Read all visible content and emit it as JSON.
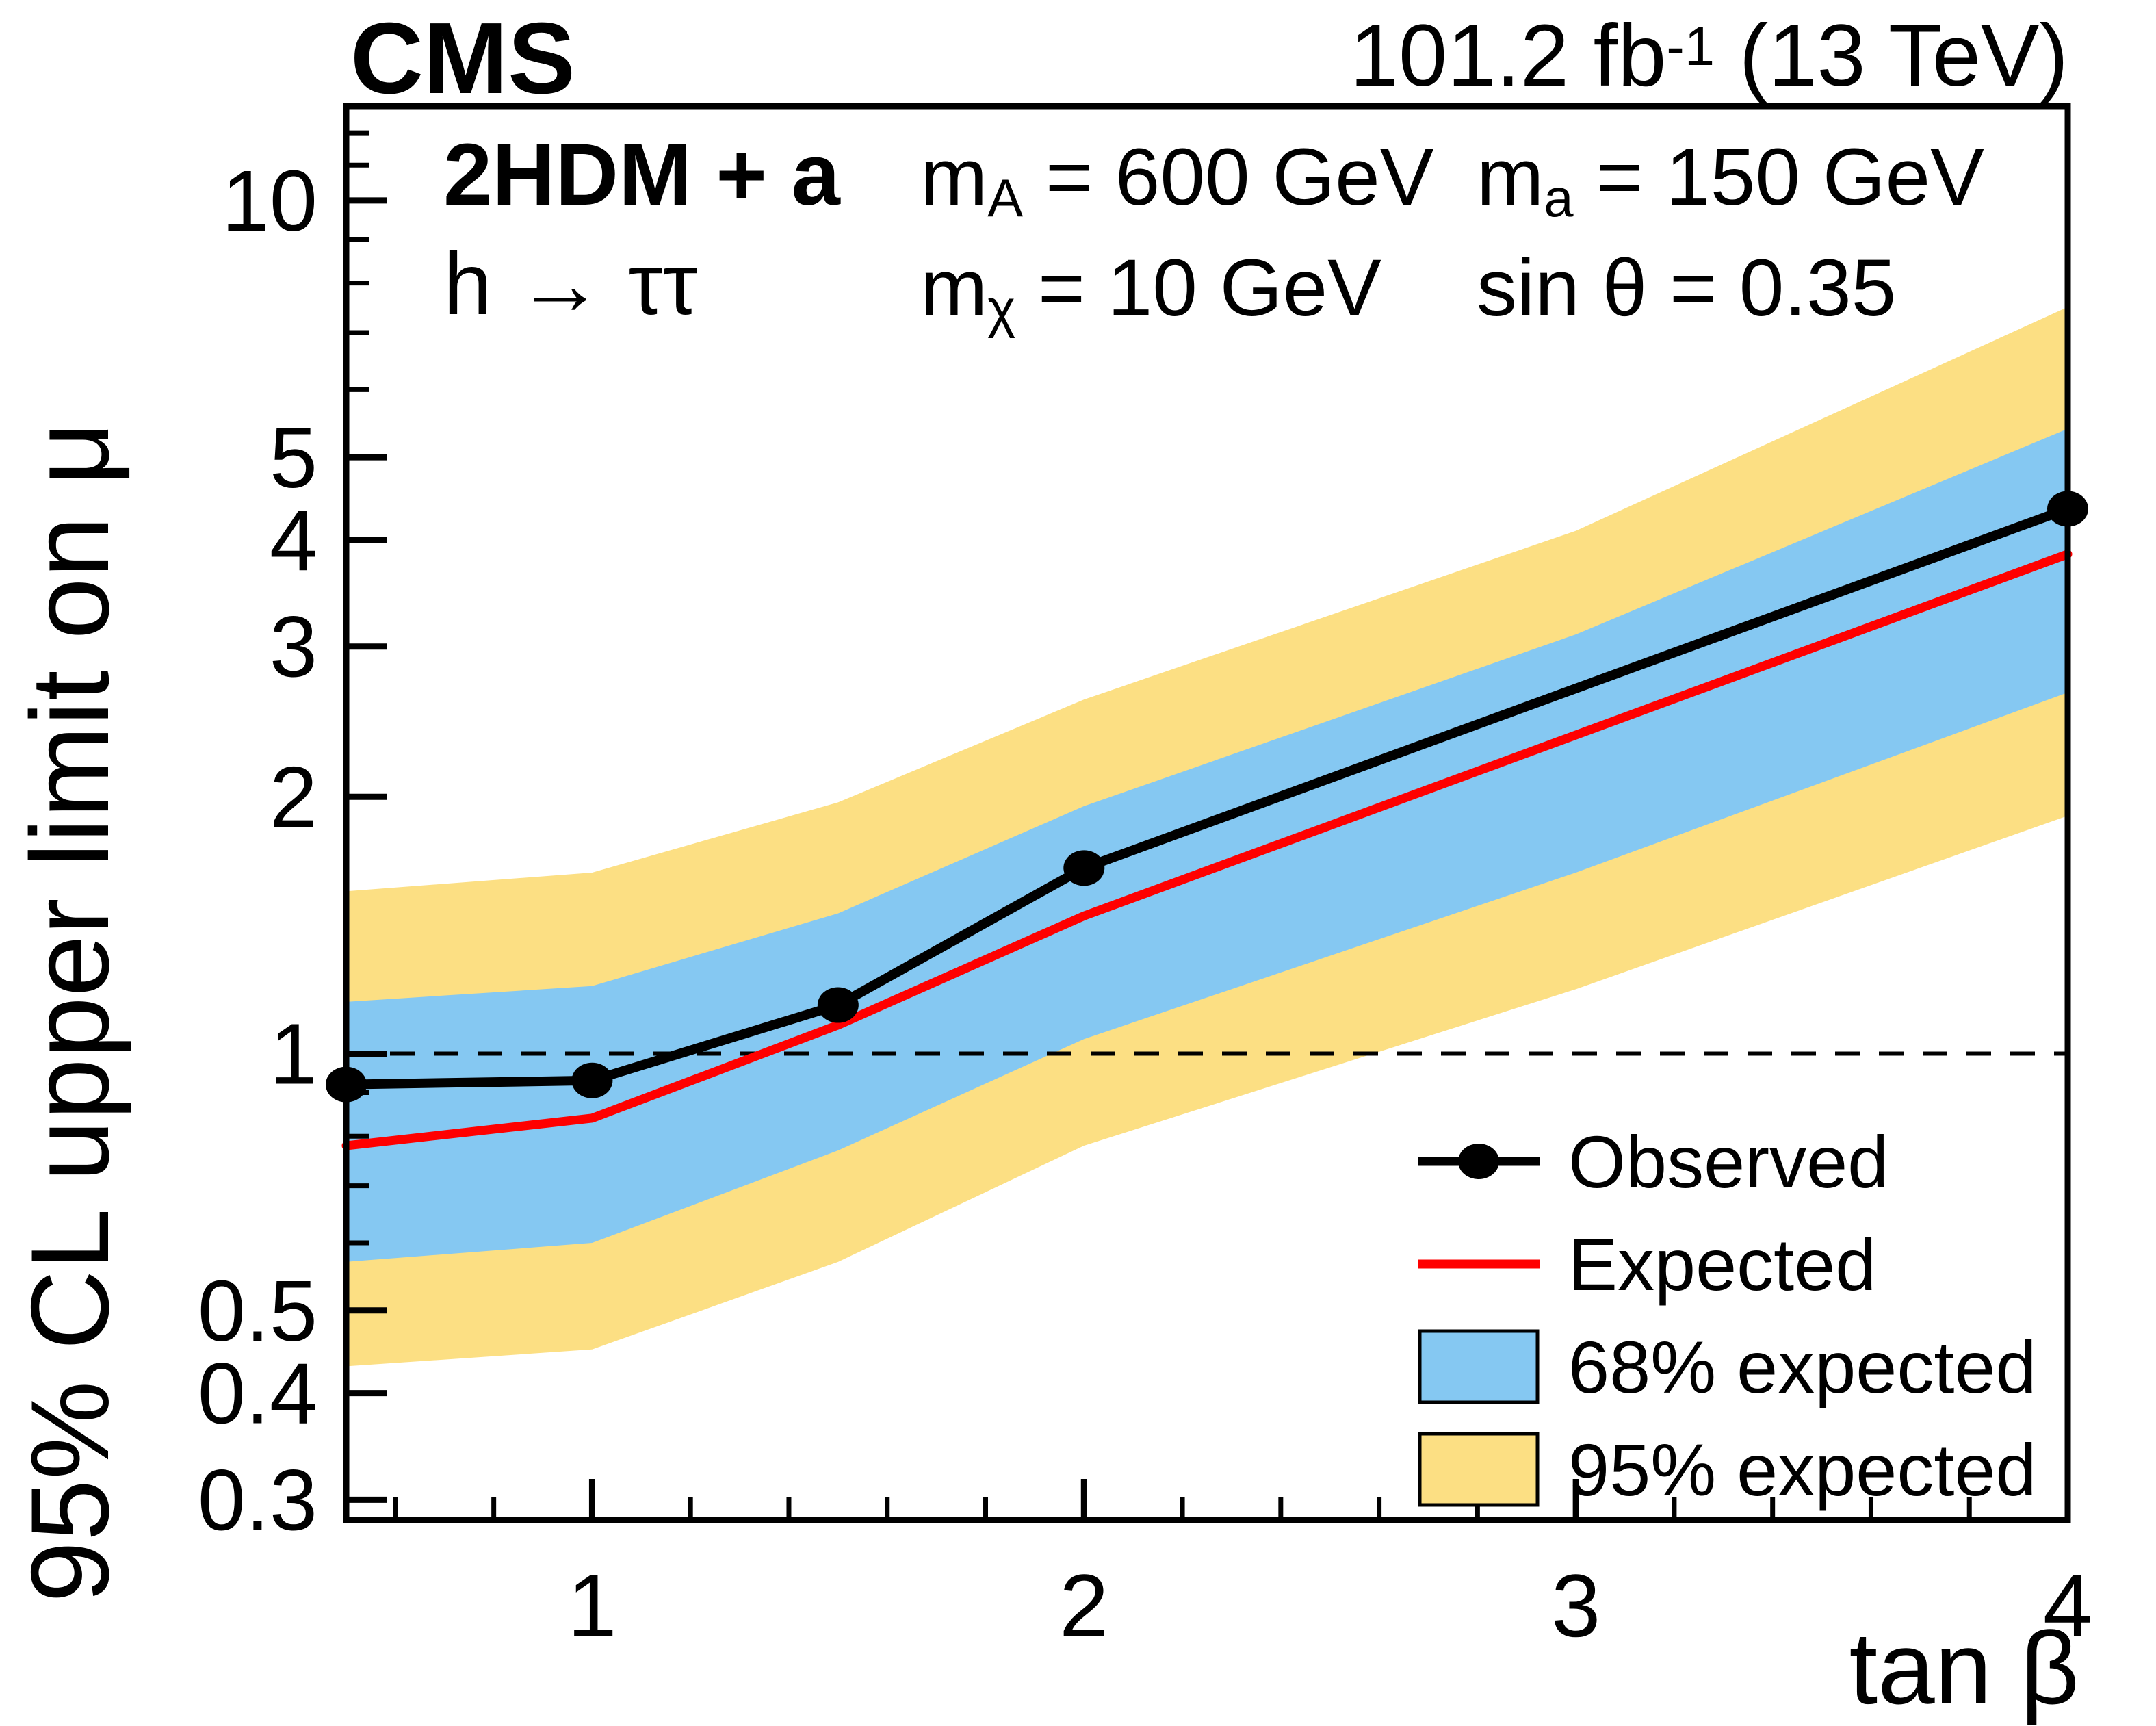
{
  "header": {
    "cms_label": "CMS",
    "lumi": {
      "pre": "101.2 fb",
      "sup": "-1",
      "post": " (13 TeV)"
    },
    "model_line1": "2HDM + a",
    "model_line2": "h → ττ",
    "params": [
      {
        "base": "m",
        "sub": "A",
        "rest": " = 600 GeV"
      },
      {
        "base": "m",
        "sub": "χ",
        "rest": " = 10 GeV"
      },
      {
        "base": "m",
        "sub": "a",
        "rest": " = 150 GeV"
      },
      {
        "base": "sin θ",
        "sub": "",
        "rest": " = 0.35"
      }
    ]
  },
  "legend": {
    "items": [
      {
        "label": "Observed",
        "swatch": "line-marker",
        "color": "#000000"
      },
      {
        "label": "Expected",
        "swatch": "line",
        "color": "#ff0000"
      },
      {
        "label": "68% expected",
        "swatch": "box",
        "color": "#85C8F2"
      },
      {
        "label": "95% expected",
        "swatch": "box",
        "color": "#FCDF83"
      }
    ]
  },
  "chart_data": {
    "type": "line",
    "title": "",
    "xlabel": "tan β",
    "ylabel": "95% CL upper limit on μ",
    "x_axis": {
      "min": 0.5,
      "max": 4,
      "scale": "linear",
      "major_ticks": [
        {
          "value": 1,
          "label": "1"
        },
        {
          "value": 2,
          "label": "2"
        },
        {
          "value": 3,
          "label": "3"
        },
        {
          "value": 4,
          "label": "4"
        }
      ],
      "minor_tick_step": 0.2
    },
    "y_axis": {
      "min": 0.284,
      "max": 12.9,
      "scale": "log",
      "major_ticks": [
        {
          "value": 10,
          "label": "10"
        },
        {
          "value": 5,
          "label": "5"
        },
        {
          "value": 4,
          "label": "4"
        },
        {
          "value": 3,
          "label": "3"
        },
        {
          "value": 2,
          "label": "2"
        },
        {
          "value": 1,
          "label": "1"
        },
        {
          "value": 0.5,
          "label": "0.5"
        },
        {
          "value": 0.4,
          "label": "0.4"
        },
        {
          "value": 0.3,
          "label": "0.3"
        }
      ],
      "minor_ticks": [
        12,
        11,
        9,
        8,
        7,
        6,
        0.9,
        0.8,
        0.7,
        0.6
      ]
    },
    "reference_line": {
      "y": 1,
      "style": "dashed"
    },
    "x": [
      0.5,
      1,
      1.5,
      2,
      4
    ],
    "series": [
      {
        "name": "Observed",
        "values": [
          0.92,
          0.93,
          1.14,
          1.65,
          4.35
        ],
        "color": "#000000",
        "marker": "filled-circle"
      },
      {
        "name": "Expected",
        "values": [
          0.78,
          0.84,
          1.08,
          1.45,
          3.85
        ],
        "color": "#ff0000",
        "marker": "none"
      }
    ],
    "bands": [
      {
        "name": "95% expected",
        "color": "#FCDF83",
        "x": [
          0.5,
          1,
          1.5,
          2,
          3,
          4
        ],
        "high": [
          1.55,
          1.63,
          1.97,
          2.6,
          4.1,
          7.5
        ],
        "low": [
          0.43,
          0.45,
          0.57,
          0.78,
          1.19,
          1.9
        ]
      },
      {
        "name": "68% expected",
        "color": "#85C8F2",
        "x": [
          0.5,
          1,
          1.5,
          2,
          3,
          4
        ],
        "high": [
          1.15,
          1.2,
          1.46,
          1.95,
          3.1,
          5.4
        ],
        "low": [
          0.57,
          0.6,
          0.77,
          1.04,
          1.63,
          2.65
        ]
      }
    ],
    "grid": false,
    "legend_position": "bottom-right"
  }
}
